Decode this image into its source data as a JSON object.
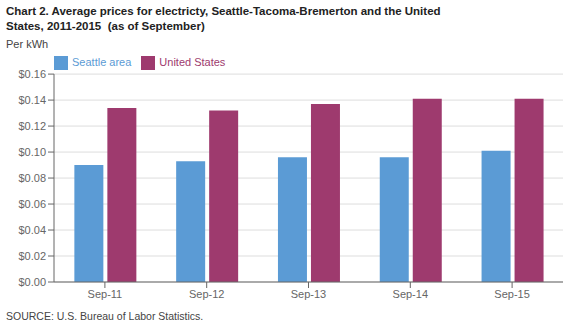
{
  "chart_data": {
    "type": "bar",
    "title": "Chart 2. Average prices for electricty, Seattle-Tacoma-Bremerton and the United\nStates, 2011-2015  (as of September)",
    "ylabel": "Per kWh",
    "annotations": [
      "SOURCE: U.S. Bureau of Labor Statistics."
    ],
    "categories": [
      "Sep-11",
      "Sep-12",
      "Sep-13",
      "Sep-14",
      "Sep-15"
    ],
    "series": [
      {
        "name": "Seattle area",
        "color": "#5B9BD5",
        "values": [
          0.09,
          0.093,
          0.096,
          0.096,
          0.101
        ]
      },
      {
        "name": "United States",
        "color": "#9E3A6E",
        "values": [
          0.134,
          0.132,
          0.137,
          0.141,
          0.141
        ]
      }
    ],
    "ylim": [
      0,
      0.16
    ],
    "yticks": [
      {
        "value": 0.0,
        "label": "$0.00"
      },
      {
        "value": 0.02,
        "label": "$0.02"
      },
      {
        "value": 0.04,
        "label": "$0.04"
      },
      {
        "value": 0.06,
        "label": "$0.06"
      },
      {
        "value": 0.08,
        "label": "$0.08"
      },
      {
        "value": 0.1,
        "label": "$0.10"
      },
      {
        "value": 0.12,
        "label": "$0.12"
      },
      {
        "value": 0.14,
        "label": "$0.14"
      },
      {
        "value": 0.16,
        "label": "$0.16"
      }
    ],
    "grid": true,
    "legend": "upper left"
  }
}
